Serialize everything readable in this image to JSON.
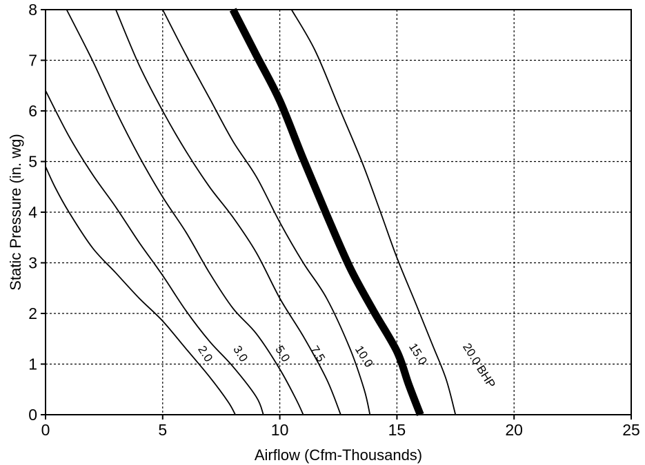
{
  "chart_data": {
    "type": "line",
    "title": "",
    "xlabel": "Airflow (Cfm-Thousands)",
    "ylabel": "Static Pressure (in. wg)",
    "xlim": [
      0,
      25
    ],
    "ylim": [
      0,
      8
    ],
    "x_ticks": [
      0,
      5,
      10,
      15,
      20,
      25
    ],
    "y_ticks": [
      0,
      1,
      2,
      3,
      4,
      5,
      6,
      7,
      8
    ],
    "x_tick_labels": [
      "0",
      "5",
      "10",
      "15",
      "20",
      "25"
    ],
    "y_tick_labels": [
      "0",
      "1",
      "2",
      "3",
      "4",
      "5",
      "6",
      "7",
      "8"
    ],
    "grid": true,
    "legend": "none",
    "series": [
      {
        "name": "2.0",
        "emphasis": false,
        "points": [
          [
            0,
            4.9
          ],
          [
            0.4,
            4.5
          ],
          [
            1,
            4.0
          ],
          [
            2,
            3.3
          ],
          [
            3,
            2.8
          ],
          [
            4,
            2.3
          ],
          [
            5,
            1.85
          ],
          [
            6,
            1.3
          ],
          [
            7,
            0.75
          ],
          [
            7.8,
            0.25
          ],
          [
            8.1,
            0
          ]
        ]
      },
      {
        "name": "3.0",
        "emphasis": false,
        "points": [
          [
            0,
            6.4
          ],
          [
            1,
            5.5
          ],
          [
            2,
            4.75
          ],
          [
            3,
            4.1
          ],
          [
            4,
            3.4
          ],
          [
            5,
            2.75
          ],
          [
            6,
            2.05
          ],
          [
            7,
            1.45
          ],
          [
            8,
            0.95
          ],
          [
            9,
            0.35
          ],
          [
            9.3,
            0
          ]
        ]
      },
      {
        "name": "5.0",
        "emphasis": false,
        "points": [
          [
            0.9,
            8
          ],
          [
            2,
            7.0
          ],
          [
            3,
            6.0
          ],
          [
            4,
            5.1
          ],
          [
            5,
            4.3
          ],
          [
            6,
            3.6
          ],
          [
            7,
            2.8
          ],
          [
            8,
            2.1
          ],
          [
            9,
            1.6
          ],
          [
            10,
            0.9
          ],
          [
            10.7,
            0.3
          ],
          [
            11,
            0
          ]
        ]
      },
      {
        "name": "7.5",
        "emphasis": false,
        "points": [
          [
            3,
            8
          ],
          [
            4,
            6.9
          ],
          [
            5,
            6.0
          ],
          [
            6,
            5.2
          ],
          [
            7,
            4.5
          ],
          [
            8,
            3.9
          ],
          [
            9,
            3.2
          ],
          [
            10,
            2.3
          ],
          [
            11,
            1.55
          ],
          [
            12,
            0.7
          ],
          [
            12.6,
            0
          ]
        ]
      },
      {
        "name": "10.0",
        "emphasis": false,
        "points": [
          [
            5,
            8
          ],
          [
            6,
            7.1
          ],
          [
            7,
            6.25
          ],
          [
            8,
            5.4
          ],
          [
            9,
            4.7
          ],
          [
            10,
            3.8
          ],
          [
            11,
            3.0
          ],
          [
            12,
            2.3
          ],
          [
            13,
            1.3
          ],
          [
            13.6,
            0.5
          ],
          [
            13.85,
            0
          ]
        ]
      },
      {
        "name": "15.0",
        "emphasis": true,
        "points": [
          [
            8,
            8
          ],
          [
            9,
            7.1
          ],
          [
            10,
            6.2
          ],
          [
            11,
            5.05
          ],
          [
            12,
            3.95
          ],
          [
            13,
            2.9
          ],
          [
            14,
            2.05
          ],
          [
            15,
            1.25
          ],
          [
            15.5,
            0.6
          ],
          [
            16,
            0
          ]
        ]
      },
      {
        "name": "20.0 BHP",
        "emphasis": false,
        "points": [
          [
            10.5,
            8
          ],
          [
            11.5,
            7.2
          ],
          [
            12.5,
            6.1
          ],
          [
            13.5,
            5.0
          ],
          [
            14.3,
            4.0
          ],
          [
            15,
            3.1
          ],
          [
            15.8,
            2.2
          ],
          [
            16.5,
            1.4
          ],
          [
            17.1,
            0.7
          ],
          [
            17.5,
            0
          ]
        ]
      }
    ],
    "curve_labels": [
      {
        "text": "2.0",
        "x": 6.5,
        "y": 1.3
      },
      {
        "text": "3.0",
        "x": 8.0,
        "y": 1.3
      },
      {
        "text": "5.0",
        "x": 9.8,
        "y": 1.3
      },
      {
        "text": "7.5",
        "x": 11.3,
        "y": 1.3
      },
      {
        "text": "10.0",
        "x": 13.2,
        "y": 1.3
      },
      {
        "text": "15.0",
        "x": 15.5,
        "y": 1.35
      },
      {
        "text": "20.0 BHP",
        "x": 17.8,
        "y": 1.35
      }
    ]
  }
}
